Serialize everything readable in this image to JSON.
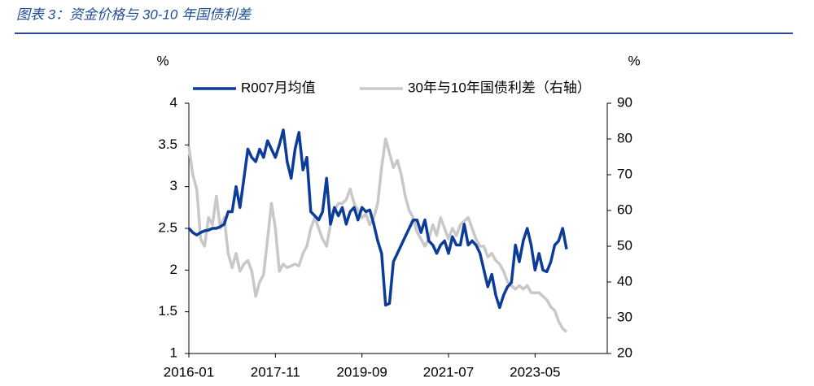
{
  "chart_data": {
    "type": "line",
    "title": "图表 3：资金价格与 30-10 年国债利差",
    "y_unit": "%",
    "y2_unit": "%",
    "categories": [
      "2016-01",
      null,
      null,
      null,
      null,
      null,
      null,
      null,
      null,
      null,
      null,
      null,
      null,
      null,
      null,
      null,
      null,
      null,
      null,
      null,
      null,
      null,
      "2017-11",
      null,
      null,
      null,
      null,
      null,
      null,
      null,
      null,
      null,
      null,
      null,
      null,
      null,
      null,
      null,
      null,
      null,
      null,
      null,
      null,
      null,
      "2019-09",
      null,
      null,
      null,
      null,
      null,
      null,
      null,
      null,
      null,
      null,
      null,
      null,
      null,
      null,
      null,
      null,
      null,
      null,
      null,
      null,
      null,
      "2021-07",
      null,
      null,
      null,
      null,
      null,
      null,
      null,
      null,
      null,
      null,
      null,
      null,
      null,
      null,
      null,
      null,
      null,
      null,
      null,
      null,
      null,
      "2023-05",
      null,
      null,
      null,
      null,
      null,
      null,
      null,
      null
    ],
    "series": [
      {
        "name": "R007月均值",
        "color": "#0c3c9a",
        "axis": "y",
        "values": [
          2.5,
          2.45,
          2.42,
          2.45,
          2.47,
          2.48,
          2.5,
          2.5,
          2.52,
          2.55,
          2.7,
          2.7,
          3.0,
          2.75,
          3.1,
          3.45,
          3.35,
          3.3,
          3.45,
          3.35,
          3.55,
          3.45,
          3.35,
          3.5,
          3.68,
          3.3,
          3.1,
          3.45,
          3.65,
          3.2,
          3.35,
          2.7,
          2.65,
          2.6,
          2.7,
          3.1,
          2.55,
          2.75,
          2.65,
          2.75,
          2.55,
          2.7,
          2.75,
          2.6,
          2.75,
          2.7,
          2.72,
          2.55,
          2.35,
          2.2,
          1.58,
          1.6,
          2.1,
          2.2,
          2.3,
          2.4,
          2.5,
          2.6,
          2.6,
          2.45,
          2.6,
          2.35,
          2.3,
          2.2,
          2.3,
          2.35,
          2.2,
          2.4,
          2.3,
          2.3,
          2.55,
          2.3,
          2.35,
          2.3,
          2.2,
          2.0,
          1.8,
          1.95,
          1.7,
          1.55,
          1.7,
          1.8,
          1.85,
          2.3,
          2.1,
          2.35,
          2.5,
          2.3,
          2.0,
          2.2,
          2.0,
          1.98,
          2.1,
          2.3,
          2.35,
          2.5,
          2.25
        ]
      },
      {
        "name": "30年与10年国债利差（右轴）",
        "color": "#c8c8c8",
        "axis": "y2",
        "values": [
          78,
          70,
          66,
          52,
          50,
          58,
          56,
          64,
          55,
          58,
          48,
          44,
          48,
          43,
          45,
          46,
          43,
          36,
          40,
          42,
          52,
          62,
          55,
          43,
          45,
          44,
          44.5,
          45,
          44.5,
          48,
          50,
          55,
          58,
          55,
          52,
          50,
          56,
          60,
          62,
          62,
          63,
          66,
          62,
          60,
          58,
          59,
          56,
          58,
          62,
          72,
          80,
          76,
          72,
          74,
          70,
          64,
          60,
          58,
          54,
          52,
          50,
          52,
          56,
          53,
          58,
          55,
          52,
          55,
          53,
          56,
          57,
          58,
          55,
          52,
          50,
          50,
          47,
          48,
          46,
          45,
          43,
          40,
          39,
          38,
          39,
          38,
          39,
          37,
          37,
          37,
          36,
          35,
          33,
          32,
          29,
          27,
          26
        ]
      }
    ],
    "ylim": [
      1,
      4
    ],
    "yticks": [
      1,
      1.5,
      2,
      2.5,
      3,
      3.5,
      4
    ],
    "y2lim": [
      20,
      90
    ],
    "y2ticks": [
      20,
      30,
      40,
      50,
      60,
      70,
      80,
      90
    ],
    "legend": "top",
    "grid": false
  }
}
